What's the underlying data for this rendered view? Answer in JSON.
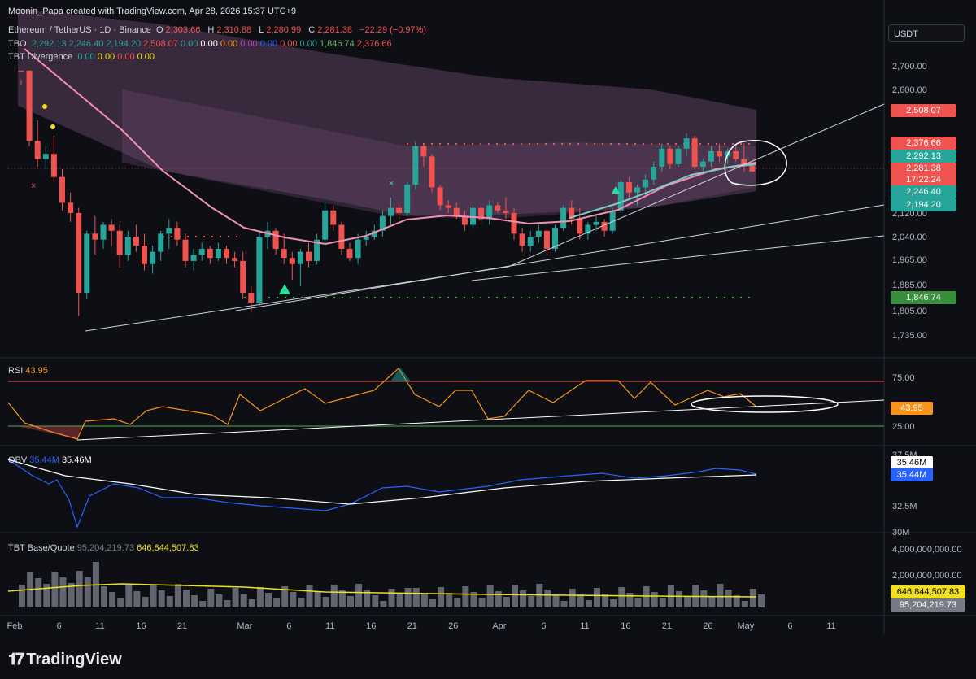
{
  "header": {
    "credit": "Moonin_Papa created with TradingView.com, Apr 28, 2026 15:37 UTC+9",
    "symbol": "Ethereum / TetherUS · 1D · Binance",
    "o_label": "O",
    "o": "2,303.66",
    "h_label": "H",
    "h": "2,310.88",
    "l_label": "L",
    "l": "2,280.99",
    "c_label": "C",
    "c": "2,281.38",
    "change": "−22.29 (−0.97%)",
    "tbo_label": "TBO",
    "tbo_values": [
      "2,292.13",
      "2,246.40",
      "2,194.20",
      "2,508.07",
      "0.00",
      "0.00",
      "0.00",
      "0.00",
      "0.00",
      "0.00",
      "0.00",
      "1,846.74",
      "2,376.66"
    ],
    "tbt_label": "TBT Divergence",
    "tbt_values": [
      "0.00",
      "0.00",
      "0.00",
      "0.00"
    ],
    "currency": "USDT"
  },
  "colors": {
    "bg": "#0d0f14",
    "up": "#26a69a",
    "down": "#ef5350",
    "pink": "#f48fb1",
    "teal": "#80cbc4",
    "cloud": "#6e4a6e",
    "rsi": "#f7931a",
    "obv": "#2962ff",
    "vol": "#787b86",
    "yellow": "#f0e020",
    "green_dot": "#4caf50",
    "red_dot": "#ef5350"
  },
  "badges": [
    {
      "value": "2,508.07",
      "color": "#ef5350",
      "pane": "main"
    },
    {
      "value": "2,376.66",
      "color": "#ef5350",
      "pane": "main"
    },
    {
      "value": "2,292.13",
      "color": "#26a69a",
      "pane": "main"
    },
    {
      "value": "2,281.38",
      "color": "#ef5350",
      "pane": "main",
      "sub": "17:22:24"
    },
    {
      "value": "2,246.40",
      "color": "#26a69a",
      "pane": "main"
    },
    {
      "value": "2,194.20",
      "color": "#26a69a",
      "pane": "main"
    },
    {
      "value": "1,846.74",
      "color": "#388e3c",
      "pane": "main"
    },
    {
      "value": "43.95",
      "color": "#f7931a",
      "pane": "rsi"
    },
    {
      "value": "35.46M",
      "color": "#ffffff",
      "pane": "obv"
    },
    {
      "value": "35.44M",
      "color": "#2962ff",
      "pane": "obv"
    },
    {
      "value": "646,844,507.83",
      "color": "#f0e020",
      "pane": "vol"
    },
    {
      "value": "95,204,219.73",
      "color": "#787b86",
      "pane": "vol"
    }
  ],
  "rsi": {
    "label": "RSI",
    "value": "43.95",
    "upper": 75,
    "lower": 25
  },
  "obv": {
    "label": "OBV",
    "value1": "35.44M",
    "value2": "35.46M"
  },
  "tbt_base": {
    "label": "TBT Base/Quote",
    "value1": "95,204,219.73",
    "value2": "646,844,507.83"
  },
  "brand": "TradingView",
  "chart_data": {
    "type": "candlestick",
    "title": "Ethereum / TetherUS · 1D · Binance",
    "currency": "USDT",
    "price_ticks": [
      "2,700.00",
      "2,600.00",
      "2,120.00",
      "2,040.00",
      "1,965.00",
      "1,885.00",
      "1,805.00",
      "1,735.00"
    ],
    "price_tick_values": [
      2700,
      2600,
      2120,
      2040,
      1965,
      1885,
      1805,
      1735
    ],
    "rsi_ticks": [
      "75.00",
      "25.00"
    ],
    "obv_ticks": [
      "37.5M",
      "32.5M",
      "30M"
    ],
    "obv_tick_values": [
      37.5,
      32.5,
      30
    ],
    "vol_ticks": [
      "4,000,000,000.00",
      "2,000,000,000.00"
    ],
    "x_ticks": [
      "Feb",
      "6",
      "11",
      "16",
      "21",
      "Mar",
      "6",
      "11",
      "16",
      "21",
      "26",
      "Apr",
      "6",
      "11",
      "16",
      "21",
      "26",
      "May",
      "6",
      "11"
    ],
    "x_tick_days": [
      0,
      5,
      10,
      15,
      20,
      28,
      33,
      38,
      43,
      48,
      53,
      59,
      64,
      69,
      74,
      79,
      84,
      89,
      94,
      99
    ],
    "candles": [
      [
        2720,
        2760,
        2620,
        2680
      ],
      [
        2680,
        2720,
        2380,
        2400
      ],
      [
        2400,
        2480,
        2300,
        2330
      ],
      [
        2330,
        2380,
        2290,
        2350
      ],
      [
        2350,
        2420,
        2240,
        2260
      ],
      [
        2260,
        2290,
        2130,
        2160
      ],
      [
        2160,
        2200,
        2090,
        2120
      ],
      [
        2120,
        2140,
        1790,
        1860
      ],
      [
        1860,
        2060,
        1840,
        2050
      ],
      [
        2050,
        2110,
        1980,
        2030
      ],
      [
        2030,
        2090,
        2000,
        2080
      ],
      [
        2080,
        2100,
        2010,
        2060
      ],
      [
        2060,
        2080,
        1940,
        1980
      ],
      [
        1980,
        2060,
        1960,
        2040
      ],
      [
        2040,
        2080,
        1990,
        2010
      ],
      [
        2010,
        2050,
        1930,
        1950
      ],
      [
        1950,
        2010,
        1920,
        1990
      ],
      [
        1990,
        2060,
        1960,
        2050
      ],
      [
        2050,
        2100,
        2000,
        2070
      ],
      [
        2070,
        2090,
        2010,
        2030
      ],
      [
        2030,
        2050,
        1940,
        1960
      ],
      [
        1960,
        2000,
        1930,
        1980
      ],
      [
        1980,
        2020,
        1960,
        2000
      ],
      [
        2000,
        2010,
        1950,
        1970
      ],
      [
        1970,
        2020,
        1960,
        2000
      ],
      [
        2000,
        2010,
        1950,
        1970
      ],
      [
        1970,
        1990,
        1940,
        1960
      ],
      [
        1960,
        1990,
        1840,
        1860
      ],
      [
        1860,
        1880,
        1800,
        1830
      ],
      [
        1830,
        2060,
        1820,
        2040
      ],
      [
        2040,
        2090,
        2000,
        2060
      ],
      [
        2060,
        2070,
        1980,
        2000
      ],
      [
        2000,
        2050,
        1950,
        1970
      ],
      [
        1970,
        1990,
        1900,
        1950
      ],
      [
        1950,
        2000,
        1880,
        1990
      ],
      [
        1990,
        2020,
        1940,
        1960
      ],
      [
        1960,
        2050,
        1950,
        2030
      ],
      [
        2030,
        2160,
        2010,
        2130
      ],
      [
        2130,
        2150,
        2060,
        2080
      ],
      [
        2080,
        2090,
        1980,
        2000
      ],
      [
        2000,
        2020,
        1960,
        1970
      ],
      [
        1970,
        2050,
        1950,
        2030
      ],
      [
        2030,
        2060,
        2010,
        2040
      ],
      [
        2040,
        2080,
        2030,
        2060
      ],
      [
        2060,
        2130,
        2040,
        2110
      ],
      [
        2110,
        2180,
        2080,
        2140
      ],
      [
        2140,
        2160,
        2100,
        2120
      ],
      [
        2120,
        2240,
        2110,
        2230
      ],
      [
        2230,
        2400,
        2210,
        2380
      ],
      [
        2380,
        2390,
        2300,
        2340
      ],
      [
        2340,
        2350,
        2200,
        2220
      ],
      [
        2220,
        2230,
        2130,
        2150
      ],
      [
        2150,
        2170,
        2120,
        2140
      ],
      [
        2140,
        2160,
        2100,
        2110
      ],
      [
        2110,
        2130,
        2060,
        2080
      ],
      [
        2080,
        2150,
        2070,
        2140
      ],
      [
        2140,
        2150,
        2080,
        2100
      ],
      [
        2100,
        2170,
        2080,
        2150
      ],
      [
        2150,
        2160,
        2120,
        2130
      ],
      [
        2130,
        2180,
        2100,
        2120
      ],
      [
        2120,
        2140,
        2030,
        2050
      ],
      [
        2050,
        2070,
        1990,
        2010
      ],
      [
        2010,
        2060,
        1990,
        2040
      ],
      [
        2040,
        2080,
        2020,
        2060
      ],
      [
        2060,
        2070,
        1980,
        2000
      ],
      [
        2000,
        2080,
        1990,
        2070
      ],
      [
        2070,
        2150,
        2060,
        2140
      ],
      [
        2140,
        2170,
        2080,
        2100
      ],
      [
        2100,
        2140,
        2030,
        2050
      ],
      [
        2050,
        2090,
        2030,
        2080
      ],
      [
        2080,
        2110,
        2060,
        2090
      ],
      [
        2090,
        2100,
        2040,
        2060
      ],
      [
        2060,
        2140,
        2050,
        2130
      ],
      [
        2130,
        2250,
        2120,
        2240
      ],
      [
        2240,
        2260,
        2180,
        2200
      ],
      [
        2200,
        2230,
        2150,
        2220
      ],
      [
        2220,
        2270,
        2190,
        2250
      ],
      [
        2250,
        2320,
        2230,
        2300
      ],
      [
        2300,
        2390,
        2280,
        2370
      ],
      [
        2370,
        2380,
        2290,
        2310
      ],
      [
        2310,
        2380,
        2300,
        2370
      ],
      [
        2370,
        2430,
        2340,
        2410
      ],
      [
        2410,
        2420,
        2290,
        2300
      ],
      [
        2300,
        2330,
        2270,
        2320
      ],
      [
        2320,
        2380,
        2300,
        2360
      ],
      [
        2360,
        2390,
        2320,
        2340
      ],
      [
        2340,
        2370,
        2310,
        2360
      ],
      [
        2360,
        2380,
        2320,
        2330
      ],
      [
        2330,
        2390,
        2280,
        2303
      ],
      [
        2303.66,
        2310.88,
        2280.99,
        2281.38
      ]
    ]
  }
}
